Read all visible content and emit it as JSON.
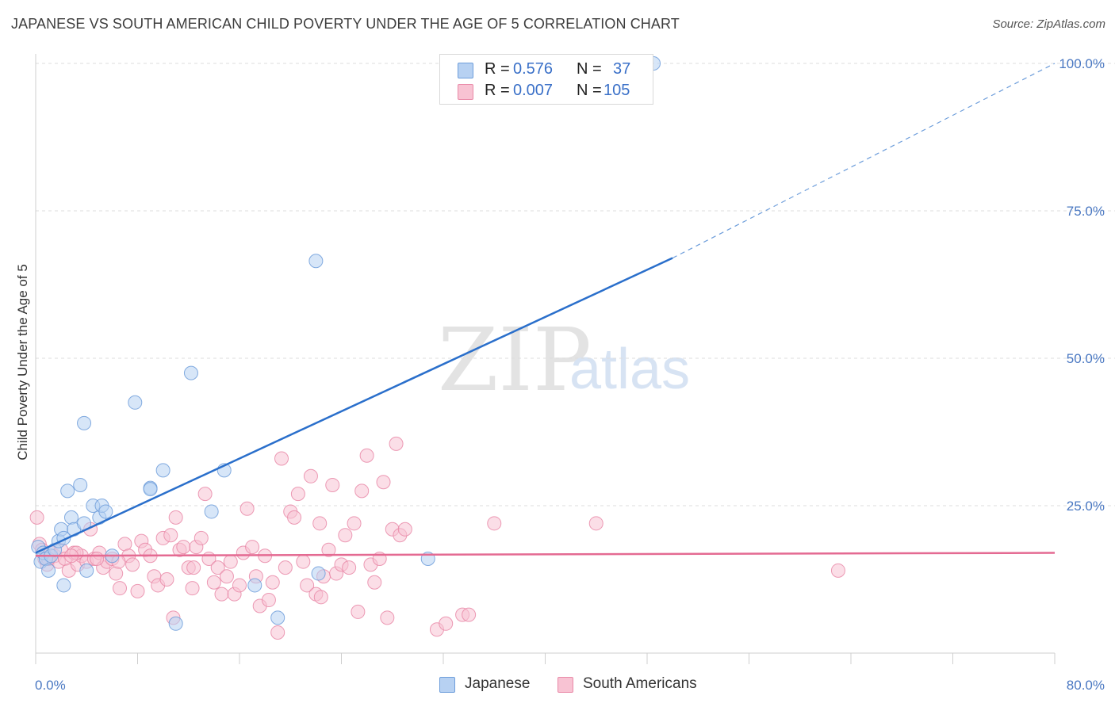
{
  "header": {
    "title": "JAPANESE VS SOUTH AMERICAN CHILD POVERTY UNDER THE AGE OF 5 CORRELATION CHART",
    "source": "Source: ZipAtlas.com"
  },
  "watermark": {
    "zip": "ZIP",
    "atlas": "atlas"
  },
  "stats_legend": {
    "rows": [
      {
        "series": "Japanese",
        "r_label": "R =",
        "r_value": "0.576",
        "n_label": "N =",
        "n_value": "37"
      },
      {
        "series": "South Americans",
        "r_label": "R =",
        "r_value": "0.007",
        "n_label": "N =",
        "n_value": "105"
      }
    ]
  },
  "colors": {
    "japanese_fill": "#b7d1f2",
    "japanese_stroke": "#6e9edb",
    "japanese_line": "#2a6fcb",
    "south_fill": "#f8c3d3",
    "south_stroke": "#e98aa8",
    "south_line": "#e46a92",
    "tick": "#4a78c2",
    "grid": "#dddddd"
  },
  "chart_data": {
    "type": "scatter",
    "title": "JAPANESE VS SOUTH AMERICAN CHILD POVERTY UNDER THE AGE OF 5 CORRELATION CHART",
    "xlabel": "",
    "ylabel": "Child Poverty Under the Age of 5",
    "xlim": [
      0,
      80
    ],
    "ylim": [
      0,
      100
    ],
    "x_tick_labels": [
      "0.0%",
      "80.0%"
    ],
    "y_ticks": [
      25,
      50,
      75,
      100
    ],
    "y_tick_labels": [
      "25.0%",
      "50.0%",
      "75.0%",
      "100.0%"
    ],
    "grid": true,
    "legend_position": "bottom",
    "series": [
      {
        "name": "Japanese",
        "r": 0.576,
        "n": 37,
        "trend": {
          "x0": 0,
          "y0": 17.0,
          "x1": 50,
          "y1": 67.0,
          "dashed_to_x": 80,
          "dashed_to_y": 100.0
        },
        "points": [
          [
            0.2,
            18.0
          ],
          [
            0.4,
            15.5
          ],
          [
            0.6,
            17.0
          ],
          [
            0.8,
            16.0
          ],
          [
            1.0,
            14.0
          ],
          [
            1.2,
            16.5
          ],
          [
            1.5,
            17.5
          ],
          [
            1.8,
            19.0
          ],
          [
            2.0,
            21.0
          ],
          [
            2.2,
            19.5
          ],
          [
            2.5,
            27.5
          ],
          [
            2.8,
            23.0
          ],
          [
            3.0,
            21.0
          ],
          [
            3.5,
            28.5
          ],
          [
            3.8,
            22.0
          ],
          [
            4.0,
            14.0
          ],
          [
            4.5,
            25.0
          ],
          [
            5.0,
            23.0
          ],
          [
            5.2,
            25.0
          ],
          [
            5.5,
            24.0
          ],
          [
            6.0,
            16.5
          ],
          [
            7.8,
            42.5
          ],
          [
            9.0,
            28.0
          ],
          [
            10.0,
            31.0
          ],
          [
            11.0,
            5.0
          ],
          [
            12.2,
            47.5
          ],
          [
            13.8,
            24.0
          ],
          [
            14.8,
            31.0
          ],
          [
            17.2,
            11.5
          ],
          [
            19.0,
            6.0
          ],
          [
            22.0,
            66.5
          ],
          [
            48.5,
            100.0
          ],
          [
            30.8,
            16.0
          ],
          [
            22.2,
            13.5
          ],
          [
            3.8,
            39.0
          ],
          [
            2.2,
            11.5
          ],
          [
            9.0,
            27.8
          ]
        ]
      },
      {
        "name": "South Americans",
        "r": 0.007,
        "n": 105,
        "trend": {
          "x0": 0,
          "y0": 16.5,
          "x1": 80,
          "y1": 17.0
        },
        "points": [
          [
            0.1,
            23.0
          ],
          [
            0.3,
            18.5
          ],
          [
            0.5,
            17.5
          ],
          [
            0.7,
            16.0
          ],
          [
            0.9,
            15.0
          ],
          [
            1.2,
            17.0
          ],
          [
            1.5,
            16.5
          ],
          [
            1.8,
            15.5
          ],
          [
            2.0,
            17.5
          ],
          [
            2.3,
            16.0
          ],
          [
            2.6,
            14.0
          ],
          [
            3.0,
            17.0
          ],
          [
            3.3,
            15.0
          ],
          [
            3.6,
            16.5
          ],
          [
            4.0,
            15.5
          ],
          [
            4.3,
            21.0
          ],
          [
            4.6,
            16.0
          ],
          [
            5.0,
            17.0
          ],
          [
            5.3,
            14.5
          ],
          [
            5.6,
            15.5
          ],
          [
            6.0,
            16.0
          ],
          [
            6.3,
            13.5
          ],
          [
            6.6,
            11.0
          ],
          [
            7.0,
            18.5
          ],
          [
            7.3,
            16.5
          ],
          [
            7.6,
            15.0
          ],
          [
            8.0,
            10.5
          ],
          [
            8.3,
            19.0
          ],
          [
            8.6,
            17.5
          ],
          [
            9.0,
            16.5
          ],
          [
            9.3,
            13.0
          ],
          [
            9.6,
            11.5
          ],
          [
            10.0,
            19.5
          ],
          [
            10.3,
            12.5
          ],
          [
            10.6,
            20.0
          ],
          [
            11.0,
            23.0
          ],
          [
            11.3,
            17.5
          ],
          [
            11.6,
            18.0
          ],
          [
            12.0,
            14.5
          ],
          [
            12.3,
            11.0
          ],
          [
            12.6,
            18.0
          ],
          [
            13.0,
            19.5
          ],
          [
            13.3,
            27.0
          ],
          [
            13.6,
            16.0
          ],
          [
            14.0,
            12.0
          ],
          [
            14.3,
            14.5
          ],
          [
            14.6,
            10.0
          ],
          [
            15.0,
            13.0
          ],
          [
            15.3,
            15.5
          ],
          [
            15.6,
            10.0
          ],
          [
            16.0,
            11.5
          ],
          [
            16.3,
            17.0
          ],
          [
            16.6,
            24.5
          ],
          [
            17.0,
            18.0
          ],
          [
            17.3,
            13.0
          ],
          [
            17.6,
            8.0
          ],
          [
            18.0,
            16.5
          ],
          [
            18.3,
            9.0
          ],
          [
            18.6,
            12.0
          ],
          [
            19.0,
            3.5
          ],
          [
            19.3,
            33.0
          ],
          [
            19.6,
            14.5
          ],
          [
            20.0,
            24.0
          ],
          [
            20.3,
            23.0
          ],
          [
            20.6,
            27.0
          ],
          [
            21.0,
            15.5
          ],
          [
            21.3,
            11.5
          ],
          [
            21.6,
            30.0
          ],
          [
            22.0,
            10.0
          ],
          [
            22.3,
            22.0
          ],
          [
            22.6,
            13.0
          ],
          [
            23.0,
            17.5
          ],
          [
            23.3,
            28.5
          ],
          [
            23.6,
            13.5
          ],
          [
            24.0,
            15.0
          ],
          [
            24.3,
            20.0
          ],
          [
            24.6,
            14.5
          ],
          [
            25.0,
            22.0
          ],
          [
            25.3,
            7.0
          ],
          [
            25.6,
            27.5
          ],
          [
            26.0,
            33.5
          ],
          [
            26.3,
            15.0
          ],
          [
            26.6,
            12.0
          ],
          [
            27.0,
            16.0
          ],
          [
            27.3,
            29.0
          ],
          [
            27.6,
            6.0
          ],
          [
            28.0,
            21.0
          ],
          [
            28.3,
            35.5
          ],
          [
            28.6,
            20.0
          ],
          [
            29.0,
            21.0
          ],
          [
            31.5,
            4.0
          ],
          [
            32.2,
            5.0
          ],
          [
            33.5,
            6.5
          ],
          [
            34.0,
            6.5
          ],
          [
            36.0,
            22.0
          ],
          [
            44.0,
            22.0
          ],
          [
            63.0,
            14.0
          ],
          [
            10.8,
            6.0
          ],
          [
            6.5,
            15.5
          ],
          [
            4.8,
            16.0
          ],
          [
            3.2,
            17.0
          ],
          [
            2.8,
            16.5
          ],
          [
            1.0,
            16.0
          ],
          [
            12.4,
            14.5
          ],
          [
            22.4,
            9.5
          ]
        ]
      }
    ]
  }
}
